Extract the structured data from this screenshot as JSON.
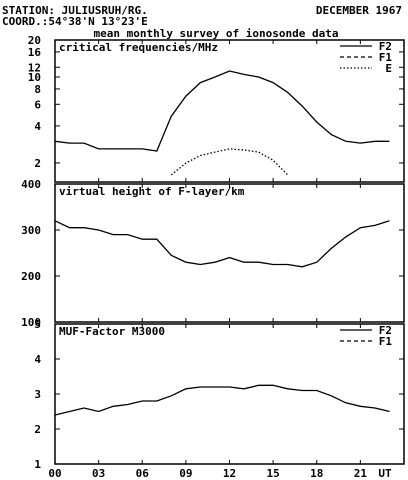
{
  "header": {
    "station": "STATION: JULIUSRUH/RG.",
    "date": "DECEMBER 1967",
    "coord": "COORD.:54°38'N 13°23'E",
    "subtitle": "mean monthly survey of ionosonde data"
  },
  "chart_data": [
    {
      "type": "line",
      "title": "critical frequencies/MHz",
      "y_scale": "log",
      "ylim": [
        1.4,
        20
      ],
      "xlim": [
        0,
        24
      ],
      "yticks": [
        2,
        4,
        6,
        8,
        10,
        12,
        16,
        20
      ],
      "legend_position": "top-right",
      "series": [
        {
          "name": "F2",
          "style": "solid",
          "x": [
            0,
            1,
            2,
            3,
            4,
            5,
            6,
            7,
            8,
            9,
            10,
            11,
            12,
            13,
            14,
            15,
            16,
            17,
            18,
            19,
            20,
            21,
            22,
            23
          ],
          "values": [
            3.0,
            2.9,
            2.9,
            2.6,
            2.6,
            2.6,
            2.6,
            2.5,
            4.8,
            7.0,
            9.0,
            10.0,
            11.2,
            10.5,
            10.0,
            9.0,
            7.5,
            5.8,
            4.3,
            3.4,
            3.0,
            2.9,
            3.0,
            3.0
          ]
        },
        {
          "name": "F1",
          "style": "dashed",
          "x": [],
          "values": []
        },
        {
          "name": "E",
          "style": "dotted",
          "x": [
            8,
            9,
            10,
            11,
            12,
            13,
            14,
            15,
            16
          ],
          "values": [
            1.6,
            2.0,
            2.3,
            2.45,
            2.6,
            2.55,
            2.45,
            2.1,
            1.6
          ]
        }
      ]
    },
    {
      "type": "line",
      "title": "virtual height of F-layer/km",
      "ylim": [
        100,
        400
      ],
      "xlim": [
        0,
        24
      ],
      "yticks": [
        100,
        200,
        300,
        400
      ],
      "series": [
        {
          "style": "solid",
          "x": [
            0,
            1,
            2,
            3,
            4,
            5,
            6,
            7,
            8,
            9,
            10,
            11,
            12,
            13,
            14,
            15,
            16,
            17,
            18,
            19,
            20,
            21,
            22,
            23
          ],
          "values": [
            320,
            305,
            305,
            300,
            290,
            290,
            280,
            280,
            245,
            230,
            225,
            230,
            240,
            230,
            230,
            225,
            225,
            220,
            230,
            260,
            285,
            305,
            310,
            320
          ]
        }
      ]
    },
    {
      "type": "line",
      "title": "MUF-Factor M3000",
      "ylim": [
        1,
        5
      ],
      "xlim": [
        0,
        24
      ],
      "yticks": [
        1,
        2,
        3,
        4,
        5
      ],
      "legend_position": "top-right",
      "series": [
        {
          "name": "F2",
          "style": "solid",
          "x": [
            0,
            1,
            2,
            3,
            4,
            5,
            6,
            7,
            8,
            9,
            10,
            11,
            12,
            13,
            14,
            15,
            16,
            17,
            18,
            19,
            20,
            21,
            22,
            23
          ],
          "values": [
            2.4,
            2.5,
            2.6,
            2.5,
            2.65,
            2.7,
            2.8,
            2.8,
            2.95,
            3.15,
            3.2,
            3.2,
            3.2,
            3.15,
            3.25,
            3.25,
            3.15,
            3.1,
            3.1,
            2.95,
            2.75,
            2.65,
            2.6,
            2.5
          ]
        },
        {
          "name": "F1",
          "style": "dashed",
          "x": [],
          "values": []
        }
      ]
    }
  ],
  "x_axis": {
    "ticks": [
      0,
      3,
      6,
      9,
      12,
      15,
      18,
      21
    ],
    "tick_labels": [
      "00",
      "03",
      "06",
      "09",
      "12",
      "15",
      "18",
      "21"
    ],
    "unit_label": "UT"
  }
}
